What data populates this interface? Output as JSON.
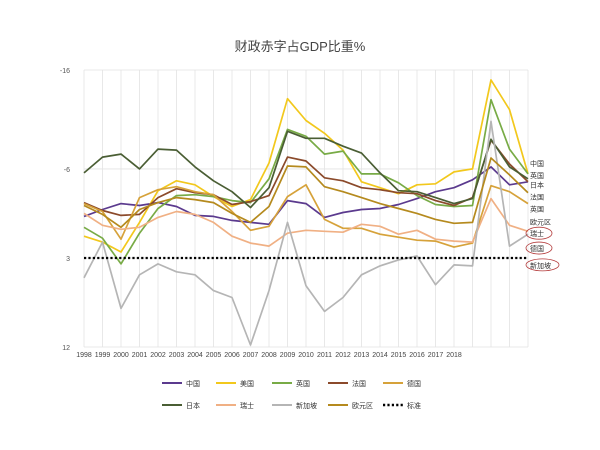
{
  "chart_data": {
    "type": "line",
    "title": "财政赤字占GDP比重%",
    "xlabel": "",
    "ylabel": "",
    "yticks": [
      {
        "label": "-16",
        "value": -16
      },
      {
        "label": "-6",
        "value": -6
      },
      {
        "label": "3",
        "value": 3
      },
      {
        "label": "12",
        "value": 12
      }
    ],
    "ylim": [
      -16,
      12
    ],
    "y_inverted": true,
    "x": [
      1998,
      1999,
      2000,
      2001,
      2002,
      2003,
      2004,
      2005,
      2006,
      2007,
      2008,
      2009,
      2010,
      2011,
      2012,
      2013,
      2014,
      2015,
      2016,
      2017,
      2018,
      2019,
      2020,
      2021,
      2022
    ],
    "xtick_labels": [
      "1998",
      "1999",
      "2000",
      "2001",
      "2002",
      "2003",
      "2004",
      "2005",
      "2006",
      "2007",
      "2008",
      "2009",
      "2010",
      "2011",
      "2012",
      "2013",
      "2014",
      "2015",
      "2016",
      "2017",
      "2018"
    ],
    "grid": true,
    "series": [
      {
        "name": "中国",
        "color": "#5b3a8e",
        "values": [
          -1.2,
          -1.9,
          -2.5,
          -2.3,
          -2.6,
          -2.2,
          -1.3,
          -1.2,
          -0.8,
          -0.6,
          -0.4,
          -2.8,
          -2.5,
          -1.1,
          -1.6,
          -1.9,
          -2.0,
          -2.4,
          -3.0,
          -3.7,
          -4.1,
          -4.9,
          -6.2,
          -4.4,
          -4.7
        ]
      },
      {
        "name": "美国",
        "color": "#f2c81c",
        "values": [
          0.8,
          1.4,
          2.4,
          -0.6,
          -3.8,
          -4.8,
          -4.4,
          -3.2,
          -2.2,
          -2.9,
          -6.6,
          -13.1,
          -10.9,
          -9.6,
          -7.9,
          -4.7,
          -4.1,
          -3.5,
          -4.4,
          -4.5,
          -5.7,
          -6.0,
          -15.0,
          -12.0,
          -5.5
        ]
      },
      {
        "name": "英国",
        "color": "#78ab46",
        "values": [
          -0.1,
          1.0,
          3.6,
          0.5,
          -2.0,
          -3.3,
          -3.4,
          -3.2,
          -2.8,
          -2.6,
          -5.0,
          -10.0,
          -9.3,
          -7.5,
          -7.8,
          -5.5,
          -5.5,
          -4.6,
          -3.3,
          -2.4,
          -2.2,
          -2.3,
          -13.0,
          -8.0,
          -5.5
        ]
      },
      {
        "name": "法国",
        "color": "#8b4a2b",
        "values": [
          -2.6,
          -1.8,
          -1.3,
          -1.4,
          -3.1,
          -4.0,
          -3.6,
          -3.4,
          -2.4,
          -2.7,
          -3.3,
          -7.2,
          -6.8,
          -5.1,
          -4.8,
          -4.1,
          -3.9,
          -3.6,
          -3.5,
          -2.8,
          -2.3,
          -3.1,
          -8.9,
          -6.5,
          -4.7
        ]
      },
      {
        "name": "德国",
        "color": "#d6a23a",
        "values": [
          -2.5,
          -1.7,
          1.1,
          -3.1,
          -3.9,
          -4.2,
          -3.7,
          -3.4,
          -1.7,
          0.2,
          -0.2,
          -3.2,
          -4.4,
          -0.9,
          0.0,
          0.0,
          0.6,
          0.9,
          1.2,
          1.3,
          1.9,
          1.5,
          -4.3,
          -3.7,
          -2.5
        ]
      },
      {
        "name": "日本",
        "color": "#4a5e34",
        "values": [
          -5.6,
          -7.2,
          -7.5,
          -6.0,
          -8.0,
          -7.9,
          -6.2,
          -4.8,
          -3.7,
          -2.1,
          -4.1,
          -9.8,
          -9.1,
          -9.1,
          -8.3,
          -7.6,
          -5.6,
          -3.8,
          -3.7,
          -3.1,
          -2.5,
          -3.0,
          -9.0,
          -6.2,
          -5.0
        ]
      },
      {
        "name": "瑞士",
        "color": "#f0b084",
        "values": [
          -1.5,
          -0.3,
          0.1,
          -0.1,
          -1.1,
          -1.7,
          -1.4,
          -0.6,
          0.8,
          1.5,
          1.8,
          0.5,
          0.2,
          0.3,
          0.4,
          -0.4,
          -0.2,
          0.6,
          0.2,
          1.1,
          1.3,
          1.4,
          -3.0,
          -0.3,
          0.3
        ]
      },
      {
        "name": "新加坡",
        "color": "#b5b5b5",
        "values": [
          5.0,
          1.4,
          8.1,
          4.7,
          3.6,
          4.4,
          4.7,
          6.3,
          7.0,
          11.8,
          6.3,
          -0.6,
          5.8,
          8.4,
          7.0,
          4.7,
          3.8,
          3.2,
          2.8,
          5.7,
          3.7,
          3.8,
          -10.8,
          1.8,
          0.6
        ]
      },
      {
        "name": "欧元区",
        "color": "#b58a1e",
        "values": [
          -2.3,
          -1.4,
          -0.1,
          -1.9,
          -2.6,
          -3.1,
          -2.9,
          -2.6,
          -1.5,
          -0.6,
          -2.2,
          -6.3,
          -6.2,
          -4.2,
          -3.7,
          -3.1,
          -2.5,
          -2.0,
          -1.5,
          -0.9,
          -0.5,
          -0.6,
          -7.1,
          -5.4,
          -3.6
        ]
      },
      {
        "name": "标准",
        "color": "#000000",
        "dashed": true,
        "values": [
          3,
          3,
          3,
          3,
          3,
          3,
          3,
          3,
          3,
          3,
          3,
          3,
          3,
          3,
          3,
          3,
          3,
          3,
          3,
          3,
          3,
          3,
          3,
          3,
          3
        ]
      }
    ],
    "end_labels": [
      {
        "text": "中国",
        "value": -6.4,
        "color": "#c0392b",
        "circled": false
      },
      {
        "text": "英国",
        "value": -5.2,
        "color": "#333333",
        "circled": false
      },
      {
        "text": "日本",
        "value": -4.2,
        "color": "#333333",
        "circled": false
      },
      {
        "text": "法国",
        "value": -3.0,
        "color": "#333333",
        "circled": false
      },
      {
        "text": "英国",
        "value": -1.8,
        "color": "#333333",
        "circled": false
      },
      {
        "text": "欧元区",
        "value": -0.5,
        "color": "#333333",
        "circled": false
      },
      {
        "text": "瑞士",
        "value": 0.7,
        "color": "#333333",
        "circled": true
      },
      {
        "text": "德国",
        "value": 2.2,
        "color": "#333333",
        "circled": true
      },
      {
        "text": "新加坡",
        "value": 3.9,
        "color": "#333333",
        "circled": true
      }
    ],
    "legend": {
      "position": "bottom",
      "rows": [
        [
          "中国",
          "美国",
          "英国",
          "法国",
          "德国"
        ],
        [
          "日本",
          "瑞士",
          "新加坡",
          "欧元区",
          "标准"
        ]
      ]
    }
  }
}
